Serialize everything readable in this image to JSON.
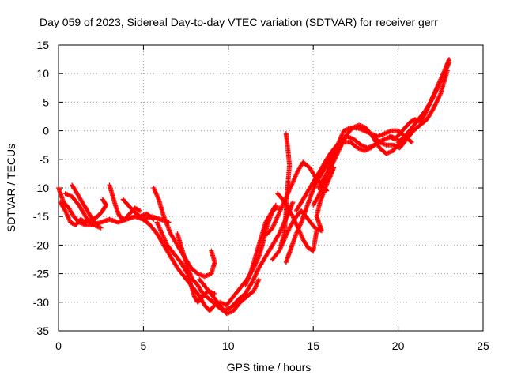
{
  "chart_data": {
    "type": "scatter",
    "title": "Day 059 of 2023, Sidereal Day-to-day VTEC variation (SDTVAR) for receiver gerr",
    "xlabel": "GPS time / hours",
    "ylabel": "SDTVAR / TECUs",
    "xlim": [
      0,
      25
    ],
    "ylim": [
      -35,
      15
    ],
    "xticks": [
      0,
      5,
      10,
      15,
      20,
      25
    ],
    "yticks": [
      15,
      10,
      5,
      0,
      -5,
      -10,
      -15,
      -20,
      -25,
      -30,
      -35
    ],
    "grid": true,
    "legend": "none",
    "marker": "+",
    "color": "#ff0000",
    "series": [
      {
        "points": [
          [
            0.0,
            -10.0
          ],
          [
            0.3,
            -12.5
          ],
          [
            0.6,
            -13.5
          ],
          [
            0.9,
            -15.0
          ],
          [
            1.2,
            -16.0
          ],
          [
            1.6,
            -16.5
          ],
          [
            2.0,
            -16.5
          ],
          [
            2.5,
            -16.0
          ],
          [
            3.0,
            -15.5
          ],
          [
            3.5,
            -16.0
          ],
          [
            4.0,
            -15.5
          ],
          [
            4.5,
            -15.0
          ],
          [
            5.0,
            -15.5
          ],
          [
            5.5,
            -15.0
          ],
          [
            6.0,
            -15.5
          ],
          [
            6.5,
            -16.0
          ]
        ]
      },
      {
        "points": [
          [
            0.1,
            -12.5
          ],
          [
            0.4,
            -14.0
          ],
          [
            0.7,
            -16.0
          ],
          [
            1.0,
            -16.5
          ],
          [
            1.3,
            -15.5
          ],
          [
            1.6,
            -16.0
          ],
          [
            2.0,
            -15.5
          ],
          [
            2.3,
            -15.0
          ],
          [
            2.6,
            -14.0
          ],
          [
            2.8,
            -13.0
          ],
          [
            2.6,
            -12.0
          ]
        ]
      },
      {
        "points": [
          [
            0.4,
            -11.0
          ],
          [
            0.8,
            -11.5
          ],
          [
            1.2,
            -13.0
          ],
          [
            1.5,
            -14.5
          ],
          [
            1.8,
            -16.0
          ],
          [
            2.1,
            -16.5
          ],
          [
            2.5,
            -17.0
          ]
        ]
      },
      {
        "points": [
          [
            0.8,
            -9.5
          ],
          [
            1.1,
            -11.0
          ],
          [
            1.4,
            -12.5
          ],
          [
            1.7,
            -14.0
          ],
          [
            2.0,
            -15.5
          ],
          [
            2.3,
            -16.5
          ]
        ]
      },
      {
        "points": [
          [
            3.0,
            -9.5
          ],
          [
            3.2,
            -11.5
          ],
          [
            3.4,
            -13.5
          ],
          [
            3.6,
            -15.0
          ],
          [
            3.9,
            -15.5
          ],
          [
            4.2,
            -14.5
          ],
          [
            4.5,
            -13.5
          ],
          [
            4.8,
            -14.0
          ]
        ]
      },
      {
        "points": [
          [
            3.8,
            -12.0
          ],
          [
            4.1,
            -13.0
          ],
          [
            4.4,
            -14.0
          ],
          [
            4.8,
            -15.0
          ],
          [
            5.2,
            -14.5
          ],
          [
            5.6,
            -15.5
          ]
        ]
      },
      {
        "points": [
          [
            5.6,
            -10.0
          ],
          [
            5.9,
            -12.0
          ],
          [
            6.2,
            -15.0
          ],
          [
            6.6,
            -18.0
          ],
          [
            7.0,
            -20.0
          ],
          [
            7.4,
            -22.0
          ],
          [
            7.8,
            -24.0
          ],
          [
            8.2,
            -25.0
          ],
          [
            8.6,
            -25.5
          ],
          [
            9.0,
            -25.0
          ],
          [
            9.2,
            -23.0
          ],
          [
            9.0,
            -21.0
          ]
        ]
      },
      {
        "points": [
          [
            5.8,
            -16.0
          ],
          [
            6.1,
            -18.0
          ],
          [
            6.4,
            -20.0
          ],
          [
            6.8,
            -21.5
          ],
          [
            7.2,
            -23.0
          ],
          [
            7.6,
            -25.0
          ],
          [
            7.8,
            -27.0
          ],
          [
            8.0,
            -29.0
          ],
          [
            8.2,
            -30.0
          ],
          [
            8.5,
            -29.0
          ],
          [
            8.8,
            -28.0
          ],
          [
            9.2,
            -28.5
          ]
        ]
      },
      {
        "points": [
          [
            5.0,
            -15.5
          ],
          [
            5.4,
            -16.5
          ],
          [
            5.8,
            -18.0
          ],
          [
            6.2,
            -20.0
          ],
          [
            6.6,
            -22.0
          ],
          [
            7.0,
            -24.0
          ],
          [
            7.4,
            -25.5
          ],
          [
            7.8,
            -27.0
          ],
          [
            8.2,
            -28.5
          ],
          [
            8.6,
            -30.5
          ],
          [
            8.9,
            -31.5
          ],
          [
            9.2,
            -30.5
          ]
        ]
      },
      {
        "points": [
          [
            7.0,
            -18.0
          ],
          [
            7.3,
            -21.0
          ],
          [
            7.6,
            -24.0
          ],
          [
            7.9,
            -26.0
          ],
          [
            8.2,
            -27.0
          ],
          [
            8.5,
            -28.5
          ],
          [
            8.9,
            -29.5
          ],
          [
            9.3,
            -30.5
          ],
          [
            9.7,
            -31.5
          ],
          [
            10.1,
            -31.0
          ],
          [
            10.5,
            -30.0
          ]
        ]
      },
      {
        "points": [
          [
            8.3,
            -26.0
          ],
          [
            8.7,
            -27.5
          ],
          [
            9.1,
            -29.0
          ],
          [
            9.5,
            -30.5
          ],
          [
            9.9,
            -32.0
          ],
          [
            10.3,
            -31.5
          ],
          [
            10.7,
            -30.0
          ],
          [
            11.1,
            -29.0
          ],
          [
            11.5,
            -28.0
          ],
          [
            11.8,
            -26.0
          ]
        ]
      },
      {
        "points": [
          [
            9.5,
            -30.0
          ],
          [
            9.9,
            -30.5
          ],
          [
            10.3,
            -29.0
          ],
          [
            10.7,
            -27.5
          ],
          [
            11.1,
            -26.0
          ],
          [
            11.5,
            -24.0
          ],
          [
            11.8,
            -22.0
          ],
          [
            12.0,
            -20.0
          ],
          [
            12.3,
            -16.5
          ],
          [
            12.6,
            -14.0
          ],
          [
            12.8,
            -13.0
          ]
        ]
      },
      {
        "points": [
          [
            10.3,
            -30.5
          ],
          [
            10.6,
            -29.5
          ],
          [
            11.0,
            -28.5
          ],
          [
            11.4,
            -26.5
          ],
          [
            11.8,
            -24.0
          ],
          [
            12.2,
            -22.0
          ],
          [
            12.6,
            -20.0
          ],
          [
            13.0,
            -18.0
          ],
          [
            13.3,
            -16.0
          ],
          [
            13.6,
            -14.0
          ],
          [
            13.8,
            -12.5
          ]
        ]
      },
      {
        "points": [
          [
            11.0,
            -27.0
          ],
          [
            11.3,
            -25.0
          ],
          [
            11.6,
            -22.0
          ],
          [
            11.9,
            -19.0
          ],
          [
            12.2,
            -16.0
          ],
          [
            12.5,
            -14.5
          ],
          [
            12.8,
            -13.5
          ],
          [
            13.0,
            -13.5
          ]
        ]
      },
      {
        "points": [
          [
            12.3,
            -18.0
          ],
          [
            12.6,
            -17.0
          ],
          [
            12.9,
            -15.0
          ],
          [
            13.2,
            -13.0
          ],
          [
            13.5,
            -11.0
          ],
          [
            13.8,
            -9.0
          ],
          [
            14.1,
            -7.0
          ],
          [
            14.4,
            -5.5
          ],
          [
            14.8,
            -6.5
          ],
          [
            15.1,
            -8.0
          ],
          [
            15.5,
            -9.5
          ],
          [
            15.8,
            -10.5
          ]
        ]
      },
      {
        "points": [
          [
            12.6,
            -22.5
          ],
          [
            13.0,
            -21.0
          ],
          [
            13.3,
            -19.0
          ],
          [
            13.6,
            -17.0
          ],
          [
            14.0,
            -15.0
          ],
          [
            14.3,
            -14.0
          ],
          [
            14.7,
            -15.5
          ],
          [
            15.1,
            -17.0
          ],
          [
            15.5,
            -17.5
          ],
          [
            15.2,
            -15.0
          ],
          [
            15.4,
            -12.5
          ],
          [
            15.7,
            -10.0
          ],
          [
            16.0,
            -8.0
          ],
          [
            16.2,
            -6.5
          ]
        ]
      },
      {
        "points": [
          [
            12.9,
            -11.0
          ],
          [
            13.2,
            -12.0
          ],
          [
            13.5,
            -13.5
          ],
          [
            13.8,
            -15.0
          ],
          [
            14.1,
            -17.0
          ],
          [
            14.4,
            -19.0
          ],
          [
            14.7,
            -20.5
          ],
          [
            15.0,
            -21.0
          ],
          [
            15.2,
            -17.5
          ]
        ]
      },
      {
        "points": [
          [
            13.1,
            -20.0
          ],
          [
            13.3,
            -18.0
          ],
          [
            13.4,
            -14.0
          ],
          [
            13.5,
            -9.5
          ],
          [
            13.6,
            -6.0
          ],
          [
            13.5,
            -3.0
          ],
          [
            13.4,
            -0.5
          ]
        ]
      },
      {
        "points": [
          [
            13.4,
            -23.0
          ],
          [
            13.7,
            -20.5
          ],
          [
            14.0,
            -18.0
          ],
          [
            14.3,
            -16.0
          ],
          [
            14.6,
            -13.5
          ],
          [
            14.9,
            -11.0
          ],
          [
            15.2,
            -9.0
          ],
          [
            15.6,
            -7.0
          ],
          [
            16.0,
            -5.0
          ],
          [
            16.3,
            -3.5
          ],
          [
            16.6,
            -2.0
          ],
          [
            17.0,
            -1.0
          ],
          [
            17.4,
            -1.5
          ],
          [
            17.8,
            -2.5
          ],
          [
            18.2,
            -3.0
          ],
          [
            18.6,
            -2.5
          ]
        ]
      },
      {
        "points": [
          [
            14.0,
            -14.0
          ],
          [
            14.4,
            -12.0
          ],
          [
            14.8,
            -10.0
          ],
          [
            15.2,
            -8.0
          ],
          [
            15.6,
            -6.0
          ],
          [
            16.0,
            -4.0
          ],
          [
            16.4,
            -2.5
          ],
          [
            16.8,
            -2.0
          ],
          [
            17.2,
            -2.0
          ],
          [
            17.6,
            -3.0
          ],
          [
            18.0,
            -3.5
          ],
          [
            18.4,
            -3.0
          ],
          [
            18.8,
            -2.0
          ],
          [
            19.2,
            -1.5
          ],
          [
            19.6,
            -1.0
          ],
          [
            20.0,
            -1.5
          ]
        ]
      },
      {
        "points": [
          [
            15.0,
            -13.0
          ],
          [
            15.3,
            -11.5
          ],
          [
            15.6,
            -9.5
          ],
          [
            15.9,
            -7.0
          ],
          [
            16.2,
            -4.5
          ],
          [
            16.5,
            -2.0
          ],
          [
            16.8,
            0.0
          ],
          [
            17.2,
            0.5
          ],
          [
            17.6,
            0.5
          ],
          [
            18.0,
            0.0
          ],
          [
            18.4,
            -0.5
          ],
          [
            18.8,
            -1.0
          ],
          [
            19.2,
            -0.5
          ],
          [
            19.6,
            0.0
          ],
          [
            20.0,
            0.0
          ],
          [
            20.4,
            -1.0
          ],
          [
            20.8,
            -2.0
          ]
        ]
      },
      {
        "points": [
          [
            15.3,
            -10.0
          ],
          [
            15.7,
            -8.0
          ],
          [
            16.1,
            -6.0
          ],
          [
            16.5,
            -3.5
          ],
          [
            16.9,
            -1.0
          ],
          [
            17.3,
            0.5
          ],
          [
            17.7,
            1.0
          ],
          [
            18.1,
            0.5
          ],
          [
            18.5,
            -1.0
          ],
          [
            18.9,
            -3.0
          ],
          [
            19.3,
            -4.0
          ],
          [
            19.7,
            -3.5
          ],
          [
            20.1,
            -2.0
          ],
          [
            20.5,
            -1.0
          ]
        ]
      },
      {
        "points": [
          [
            18.5,
            -1.0
          ],
          [
            18.9,
            -2.0
          ],
          [
            19.3,
            -2.5
          ],
          [
            19.7,
            -2.5
          ],
          [
            20.1,
            -3.0
          ],
          [
            20.5,
            -1.5
          ],
          [
            20.9,
            0.0
          ],
          [
            21.3,
            1.0
          ],
          [
            21.7,
            2.0
          ],
          [
            22.1,
            4.0
          ],
          [
            22.5,
            6.5
          ],
          [
            22.9,
            10.5
          ]
        ]
      },
      {
        "points": [
          [
            19.5,
            -1.0
          ],
          [
            19.8,
            -1.5
          ],
          [
            20.1,
            -0.5
          ],
          [
            20.4,
            0.5
          ],
          [
            20.7,
            1.5
          ],
          [
            21.0,
            2.0
          ],
          [
            21.3,
            1.5
          ],
          [
            21.6,
            3.0
          ],
          [
            21.9,
            5.0
          ],
          [
            22.2,
            7.0
          ],
          [
            22.5,
            9.0
          ],
          [
            22.8,
            11.0
          ],
          [
            23.0,
            12.5
          ]
        ]
      },
      {
        "points": [
          [
            20.0,
            -2.0
          ],
          [
            20.4,
            -1.0
          ],
          [
            20.8,
            0.5
          ],
          [
            21.2,
            2.0
          ],
          [
            21.6,
            3.5
          ],
          [
            22.0,
            5.5
          ],
          [
            22.4,
            8.0
          ],
          [
            22.8,
            10.5
          ],
          [
            23.0,
            12.0
          ]
        ]
      }
    ]
  }
}
